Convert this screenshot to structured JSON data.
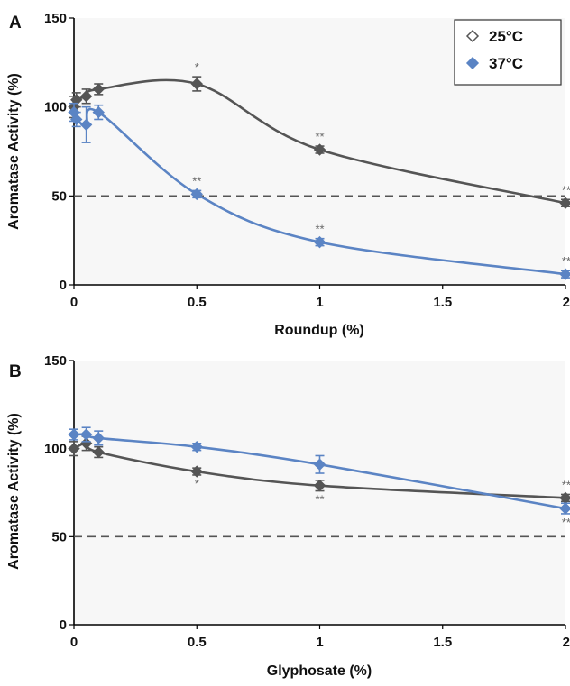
{
  "chart_data": [
    {
      "type": "line",
      "panel_label": "A",
      "xlabel": "Roundup (%)",
      "ylabel": "Aromatase Activity (%)",
      "xlim": [
        0,
        2
      ],
      "ylim": [
        0,
        150
      ],
      "x_ticks": [
        "0",
        "0.5",
        "1",
        "1.5",
        "2"
      ],
      "y_ticks": [
        "0",
        "50",
        "100",
        "150"
      ],
      "reference_line": 50,
      "legend": {
        "position": "top-right",
        "entries": [
          "25°C",
          "37°C"
        ]
      },
      "series": [
        {
          "name": "25°C",
          "color": "#555555",
          "marker": "diamond",
          "x": [
            0,
            0.01,
            0.05,
            0.1,
            0.5,
            1,
            2
          ],
          "y": [
            100,
            104,
            106,
            110,
            113,
            76,
            46
          ],
          "err": [
            6,
            4,
            4,
            3,
            4,
            2,
            2
          ],
          "sig": [
            "",
            "",
            "",
            "",
            "*",
            "**",
            "**"
          ]
        },
        {
          "name": "37°C",
          "color": "#5b84c4",
          "marker": "diamond",
          "x": [
            0,
            0.01,
            0.05,
            0.1,
            0.5,
            1,
            2
          ],
          "y": [
            97,
            93,
            90,
            97,
            51,
            24,
            6
          ],
          "err": [
            5,
            4,
            10,
            4,
            2,
            2,
            2
          ],
          "sig": [
            "",
            "",
            "",
            "",
            "**",
            "**",
            "**"
          ]
        }
      ]
    },
    {
      "type": "line",
      "panel_label": "B",
      "xlabel": "Glyphosate (%)",
      "ylabel": "Aromatase Activity (%)",
      "xlim": [
        0,
        2
      ],
      "ylim": [
        0,
        150
      ],
      "x_ticks": [
        "0",
        "0.5",
        "1",
        "1.5",
        "2"
      ],
      "y_ticks": [
        "0",
        "50",
        "100",
        "150"
      ],
      "reference_line": 50,
      "series": [
        {
          "name": "25°C",
          "color": "#555555",
          "marker": "diamond",
          "x": [
            0,
            0.05,
            0.1,
            0.5,
            1,
            2
          ],
          "y": [
            100,
            103,
            98,
            87,
            79,
            72
          ],
          "err": [
            4,
            4,
            3,
            2,
            3,
            2
          ],
          "sig": [
            "",
            "",
            "",
            "*",
            "**",
            "**"
          ]
        },
        {
          "name": "37°C",
          "color": "#5b84c4",
          "marker": "diamond",
          "x": [
            0,
            0.05,
            0.1,
            0.5,
            1,
            2
          ],
          "y": [
            108,
            108,
            106,
            101,
            91,
            66
          ],
          "err": [
            3,
            4,
            4,
            2,
            5,
            3
          ],
          "sig": [
            "",
            "",
            "",
            "",
            "",
            "**"
          ]
        }
      ]
    }
  ]
}
